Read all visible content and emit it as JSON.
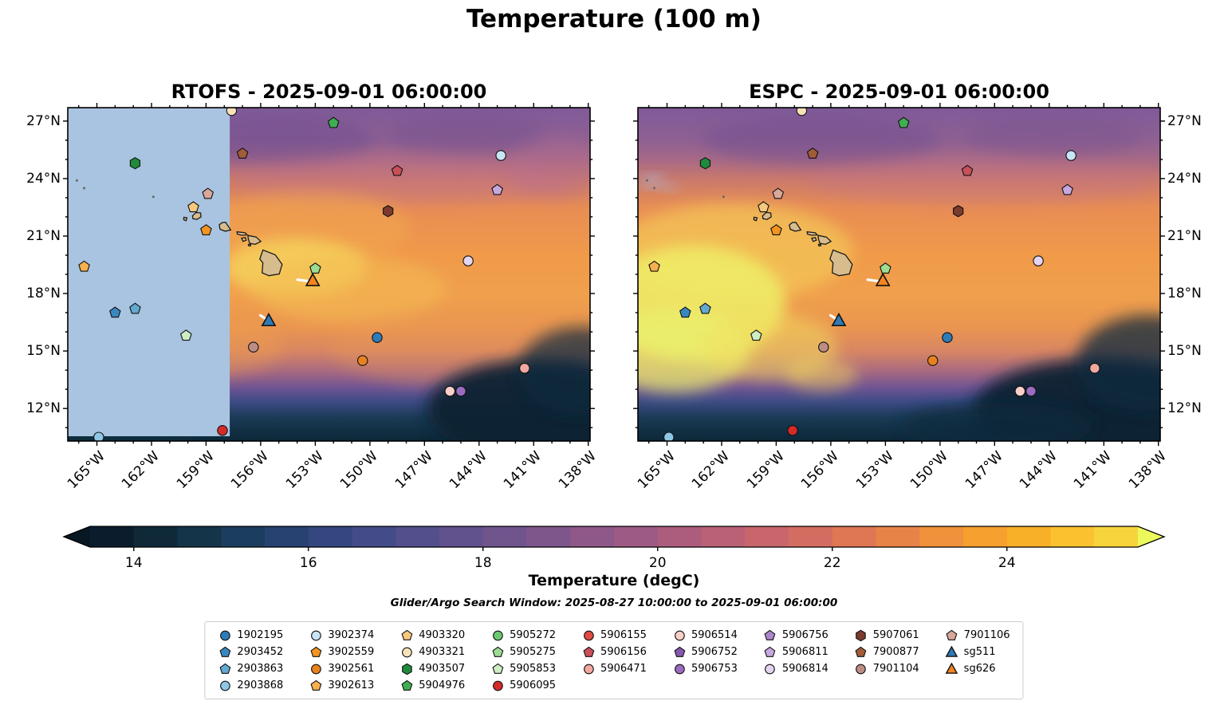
{
  "chart_data": {
    "type": "heatmap",
    "title": "Temperature (100 m)",
    "subtitle_note": "Glider/Argo Search Window: 2025-08-27 10:00:00 to 2025-09-01 06:00:00",
    "panels": [
      {
        "id": "rtofs",
        "model": "RTOFS",
        "valid_time": "2025-09-01 06:00:00",
        "title": "RTOFS - 2025-09-01 06:00:00",
        "ylabel_side": "left",
        "masked_region": {
          "lon_max": -157.7,
          "color": "#a9c4e1",
          "note": "no-data mask west of RTOFS regional domain"
        }
      },
      {
        "id": "espc",
        "model": "ESPC",
        "valid_time": "2025-09-01 06:00:00",
        "title": "ESPC - 2025-09-01 06:00:00",
        "ylabel_side": "right",
        "masked_region": null
      }
    ],
    "extent": {
      "lon_min": -166.6,
      "lon_max": -137.9,
      "lat_min": 10.3,
      "lat_max": 27.7
    },
    "x_ticks": [
      {
        "lon": -165,
        "label": "165°W"
      },
      {
        "lon": -162,
        "label": "162°W"
      },
      {
        "lon": -159,
        "label": "159°W"
      },
      {
        "lon": -156,
        "label": "156°W"
      },
      {
        "lon": -153,
        "label": "153°W"
      },
      {
        "lon": -150,
        "label": "150°W"
      },
      {
        "lon": -147,
        "label": "147°W"
      },
      {
        "lon": -144,
        "label": "144°W"
      },
      {
        "lon": -141,
        "label": "141°W"
      },
      {
        "lon": -138,
        "label": "138°W"
      }
    ],
    "y_ticks": [
      {
        "lat": 12,
        "label": "12°N"
      },
      {
        "lat": 15,
        "label": "15°N"
      },
      {
        "lat": 18,
        "label": "18°N"
      },
      {
        "lat": 21,
        "label": "21°N"
      },
      {
        "lat": 24,
        "label": "24°N"
      },
      {
        "lat": 27,
        "label": "27°N"
      }
    ],
    "colorbar": {
      "label": "Temperature (degC)",
      "vmin": 13.5,
      "vmax": 25.5,
      "tick_values": [
        14,
        16,
        18,
        20,
        22,
        24
      ],
      "under_color": "#071823",
      "over_color": "#ecf95c",
      "segment_colors": [
        "#0b1d2c",
        "#0f2939",
        "#143449",
        "#1b3d5e",
        "#274270",
        "#34477f",
        "#434b88",
        "#524f8c",
        "#61528d",
        "#70548c",
        "#7f568b",
        "#8e5888",
        "#9d5a84",
        "#ac5d7d",
        "#ba6176",
        "#c8666c",
        "#d46d61",
        "#df7755",
        "#e88348",
        "#f0913b",
        "#f5a02f",
        "#f8b028",
        "#f9c22e",
        "#f7d43c"
      ]
    },
    "legend": {
      "entries": [
        {
          "id": "1902195",
          "label": "1902195",
          "shape": "circle",
          "color": "#2d7cb8"
        },
        {
          "id": "2903452",
          "label": "2903452",
          "shape": "pentagon",
          "color": "#3a87c0"
        },
        {
          "id": "2903863",
          "label": "2903863",
          "shape": "pentagon",
          "color": "#62a9d1"
        },
        {
          "id": "2903868",
          "label": "2903868",
          "shape": "circle",
          "color": "#8ec6e6"
        },
        {
          "id": "3902374",
          "label": "3902374",
          "shape": "circle",
          "color": "#c9e4f5"
        },
        {
          "id": "3902559",
          "label": "3902559",
          "shape": "pentagon",
          "color": "#f29422"
        },
        {
          "id": "3902561",
          "label": "3902561",
          "shape": "circle",
          "color": "#e8821e"
        },
        {
          "id": "3902613",
          "label": "3902613",
          "shape": "pentagon",
          "color": "#f7b04f"
        },
        {
          "id": "4903320",
          "label": "4903320",
          "shape": "pentagon",
          "color": "#f7c87e"
        },
        {
          "id": "4903321",
          "label": "4903321",
          "shape": "circle",
          "color": "#f8e3b8"
        },
        {
          "id": "4903507",
          "label": "4903507",
          "shape": "hexagon",
          "color": "#1f8a3b"
        },
        {
          "id": "5904976",
          "label": "5904976",
          "shape": "pentagon",
          "color": "#3fae52"
        },
        {
          "id": "5905272",
          "label": "5905272",
          "shape": "circle",
          "color": "#6cc96f"
        },
        {
          "id": "5905275",
          "label": "5905275",
          "shape": "pentagon",
          "color": "#9ddc92"
        },
        {
          "id": "5905853",
          "label": "5905853",
          "shape": "pentagon",
          "color": "#cdeec4"
        },
        {
          "id": "5906095",
          "label": "5906095",
          "shape": "circle",
          "color": "#d62a28"
        },
        {
          "id": "5906155",
          "label": "5906155",
          "shape": "circle",
          "color": "#e04b42"
        },
        {
          "id": "5906156",
          "label": "5906156",
          "shape": "pentagon",
          "color": "#c94f58"
        },
        {
          "id": "5906471",
          "label": "5906471",
          "shape": "circle",
          "color": "#f2a8a0"
        },
        {
          "id": "5906514",
          "label": "5906514",
          "shape": "circle",
          "color": "#f8cfc9"
        },
        {
          "id": "5906752",
          "label": "5906752",
          "shape": "pentagon",
          "color": "#8757b0"
        },
        {
          "id": "5906753",
          "label": "5906753",
          "shape": "circle",
          "color": "#9a6cc0"
        },
        {
          "id": "5906756",
          "label": "5906756",
          "shape": "pentagon",
          "color": "#ad85cc"
        },
        {
          "id": "5906811",
          "label": "5906811",
          "shape": "pentagon",
          "color": "#c7a8dd"
        },
        {
          "id": "5906814",
          "label": "5906814",
          "shape": "circle",
          "color": "#e4d4f0"
        },
        {
          "id": "5907061",
          "label": "5907061",
          "shape": "hexagon",
          "color": "#7b3a2e"
        },
        {
          "id": "7900877",
          "label": "7900877",
          "shape": "pentagon",
          "color": "#a15c38"
        },
        {
          "id": "7901104",
          "label": "7901104",
          "shape": "circle",
          "color": "#bd8d84"
        },
        {
          "id": "7901106",
          "label": "7901106",
          "shape": "pentagon",
          "color": "#d9a79c"
        },
        {
          "id": "sg511",
          "label": "sg511",
          "shape": "triangle",
          "color": "#2f7ab5"
        },
        {
          "id": "sg626",
          "label": "sg626",
          "shape": "triangle",
          "color": "#f5841f"
        }
      ]
    },
    "markers": [
      {
        "id": "4903321",
        "lon": -157.6,
        "lat": 27.55
      },
      {
        "id": "5904976",
        "lon": -152.0,
        "lat": 26.9
      },
      {
        "id": "7900877",
        "lon": -157.0,
        "lat": 25.3
      },
      {
        "id": "3902374",
        "lon": -142.8,
        "lat": 25.2
      },
      {
        "id": "4903507",
        "lon": -162.9,
        "lat": 24.8
      },
      {
        "id": "5906156",
        "lon": -148.5,
        "lat": 24.4
      },
      {
        "id": "5906811",
        "lon": -143.0,
        "lat": 23.4
      },
      {
        "id": "7901106",
        "lon": -158.9,
        "lat": 23.2
      },
      {
        "id": "4903320",
        "lon": -159.7,
        "lat": 22.5
      },
      {
        "id": "5907061",
        "lon": -149.0,
        "lat": 22.3
      },
      {
        "id": "3902559",
        "lon": -159.0,
        "lat": 21.3
      },
      {
        "id": "5906814",
        "lon": -144.6,
        "lat": 19.7
      },
      {
        "id": "3902613",
        "lon": -165.7,
        "lat": 19.4
      },
      {
        "id": "5905275",
        "lon": -153.0,
        "lat": 19.3
      },
      {
        "id": "2903863",
        "lon": -162.9,
        "lat": 17.2
      },
      {
        "id": "2903452",
        "lon": -164.0,
        "lat": 17.0
      },
      {
        "id": "5905853",
        "lon": -160.1,
        "lat": 15.8
      },
      {
        "id": "1902195",
        "lon": -149.6,
        "lat": 15.7
      },
      {
        "id": "7901104",
        "lon": -156.4,
        "lat": 15.2
      },
      {
        "id": "3902561",
        "lon": -150.4,
        "lat": 14.5
      },
      {
        "id": "5906471",
        "lon": -141.5,
        "lat": 14.1
      },
      {
        "id": "5906514",
        "lon": -145.6,
        "lat": 12.9
      },
      {
        "id": "5906753",
        "lon": -145.0,
        "lat": 12.9
      },
      {
        "id": "5906095",
        "lon": -158.1,
        "lat": 10.85
      },
      {
        "id": "2903868",
        "lon": -164.9,
        "lat": 10.5
      },
      {
        "id": "sg626",
        "lon": -153.14,
        "lat": 18.67
      },
      {
        "id": "sg511",
        "lon": -155.56,
        "lat": 16.58
      }
    ],
    "glider_tracks": [
      {
        "id": "sg511",
        "color": "#ffffff",
        "points": [
          [
            -156.02,
            16.86
          ],
          [
            -155.56,
            16.58
          ]
        ]
      },
      {
        "id": "sg626",
        "color": "#ffffff",
        "points": [
          [
            -153.98,
            18.72
          ],
          [
            -153.2,
            18.62
          ]
        ]
      }
    ],
    "islands": [
      {
        "name": "hawaii",
        "pts": [
          [
            -155.88,
            20.27
          ],
          [
            -155.2,
            20.02
          ],
          [
            -154.82,
            19.52
          ],
          [
            -154.98,
            19.02
          ],
          [
            -155.55,
            18.93
          ],
          [
            -155.92,
            19.08
          ],
          [
            -155.88,
            19.6
          ],
          [
            -156.05,
            19.8
          ]
        ]
      },
      {
        "name": "maui",
        "pts": [
          [
            -156.7,
            21.03
          ],
          [
            -156.25,
            20.95
          ],
          [
            -155.99,
            20.72
          ],
          [
            -156.3,
            20.57
          ],
          [
            -156.6,
            20.62
          ],
          [
            -156.68,
            20.85
          ]
        ]
      },
      {
        "name": "kahoolawe",
        "pts": [
          [
            -156.68,
            20.56
          ],
          [
            -156.55,
            20.58
          ],
          [
            -156.55,
            20.49
          ],
          [
            -156.65,
            20.48
          ]
        ]
      },
      {
        "name": "lanai",
        "pts": [
          [
            -157.05,
            20.88
          ],
          [
            -156.85,
            20.92
          ],
          [
            -156.8,
            20.78
          ],
          [
            -156.97,
            20.72
          ]
        ]
      },
      {
        "name": "molokai",
        "pts": [
          [
            -157.3,
            21.22
          ],
          [
            -156.85,
            21.17
          ],
          [
            -156.75,
            21.06
          ],
          [
            -157.05,
            21.04
          ],
          [
            -157.28,
            21.1
          ]
        ]
      },
      {
        "name": "oahu",
        "pts": [
          [
            -158.28,
            21.58
          ],
          [
            -158.12,
            21.7
          ],
          [
            -157.93,
            21.72
          ],
          [
            -157.65,
            21.32
          ],
          [
            -157.95,
            21.25
          ],
          [
            -158.23,
            21.35
          ]
        ]
      },
      {
        "name": "kauai",
        "pts": [
          [
            -159.75,
            22.05
          ],
          [
            -159.55,
            22.23
          ],
          [
            -159.3,
            22.2
          ],
          [
            -159.28,
            22.0
          ],
          [
            -159.5,
            21.87
          ],
          [
            -159.72,
            21.9
          ]
        ]
      },
      {
        "name": "niihau",
        "pts": [
          [
            -160.22,
            21.98
          ],
          [
            -160.05,
            21.95
          ],
          [
            -160.1,
            21.8
          ],
          [
            -160.23,
            21.85
          ]
        ]
      }
    ],
    "islets": [
      [
        -166.1,
        23.9
      ],
      [
        -165.7,
        23.5
      ],
      [
        -161.9,
        23.05
      ]
    ]
  }
}
